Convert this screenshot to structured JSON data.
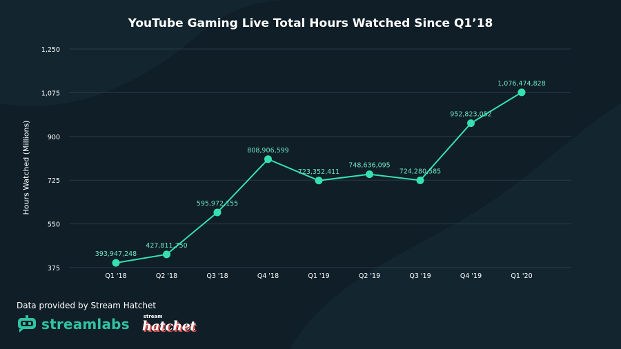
{
  "title": "YouTube Gaming Live Total Hours Watched Since Q1’18",
  "footer": {
    "source": "Data provided by Stream Hatchet",
    "streamlabs_label": "streamlabs",
    "hatchet_top": "stream",
    "hatchet_bottom": "hatchet"
  },
  "colors": {
    "background": "#0f1e27",
    "line": "#37e0b0",
    "label": "#6fe6c4",
    "grid": "#2a3a44",
    "text": "#ffffff"
  },
  "icons": [
    "streamlabs-robot-icon"
  ],
  "chart_data": {
    "type": "line",
    "title": "YouTube Gaming Live Total Hours Watched Since Q1’18",
    "xlabel": "",
    "ylabel": "Hours Watched (Millions)",
    "categories": [
      "Q1 '18",
      "Q2 '18",
      "Q3 '18",
      "Q4 '18",
      "Q1 '19",
      "Q2 '19",
      "Q3 '19",
      "Q4 '19",
      "Q1 '20"
    ],
    "values": [
      393.947248,
      427.81175,
      595.972155,
      808.906599,
      723.352411,
      748.636095,
      724.280585,
      952.823052,
      1076.474828
    ],
    "data_labels": [
      "393,947,248",
      "427,811,750",
      "595,972,155",
      "808,906,599",
      "723,352,411",
      "748,636,095",
      "724,280,585",
      "952,823,052",
      "1,076,474,828"
    ],
    "yticks": [
      375,
      550,
      725,
      900,
      1075,
      1250
    ],
    "ytick_labels": [
      "375",
      "550",
      "725",
      "900",
      "1,075",
      "1,250"
    ],
    "ylim": [
      375,
      1250
    ],
    "grid": true
  }
}
